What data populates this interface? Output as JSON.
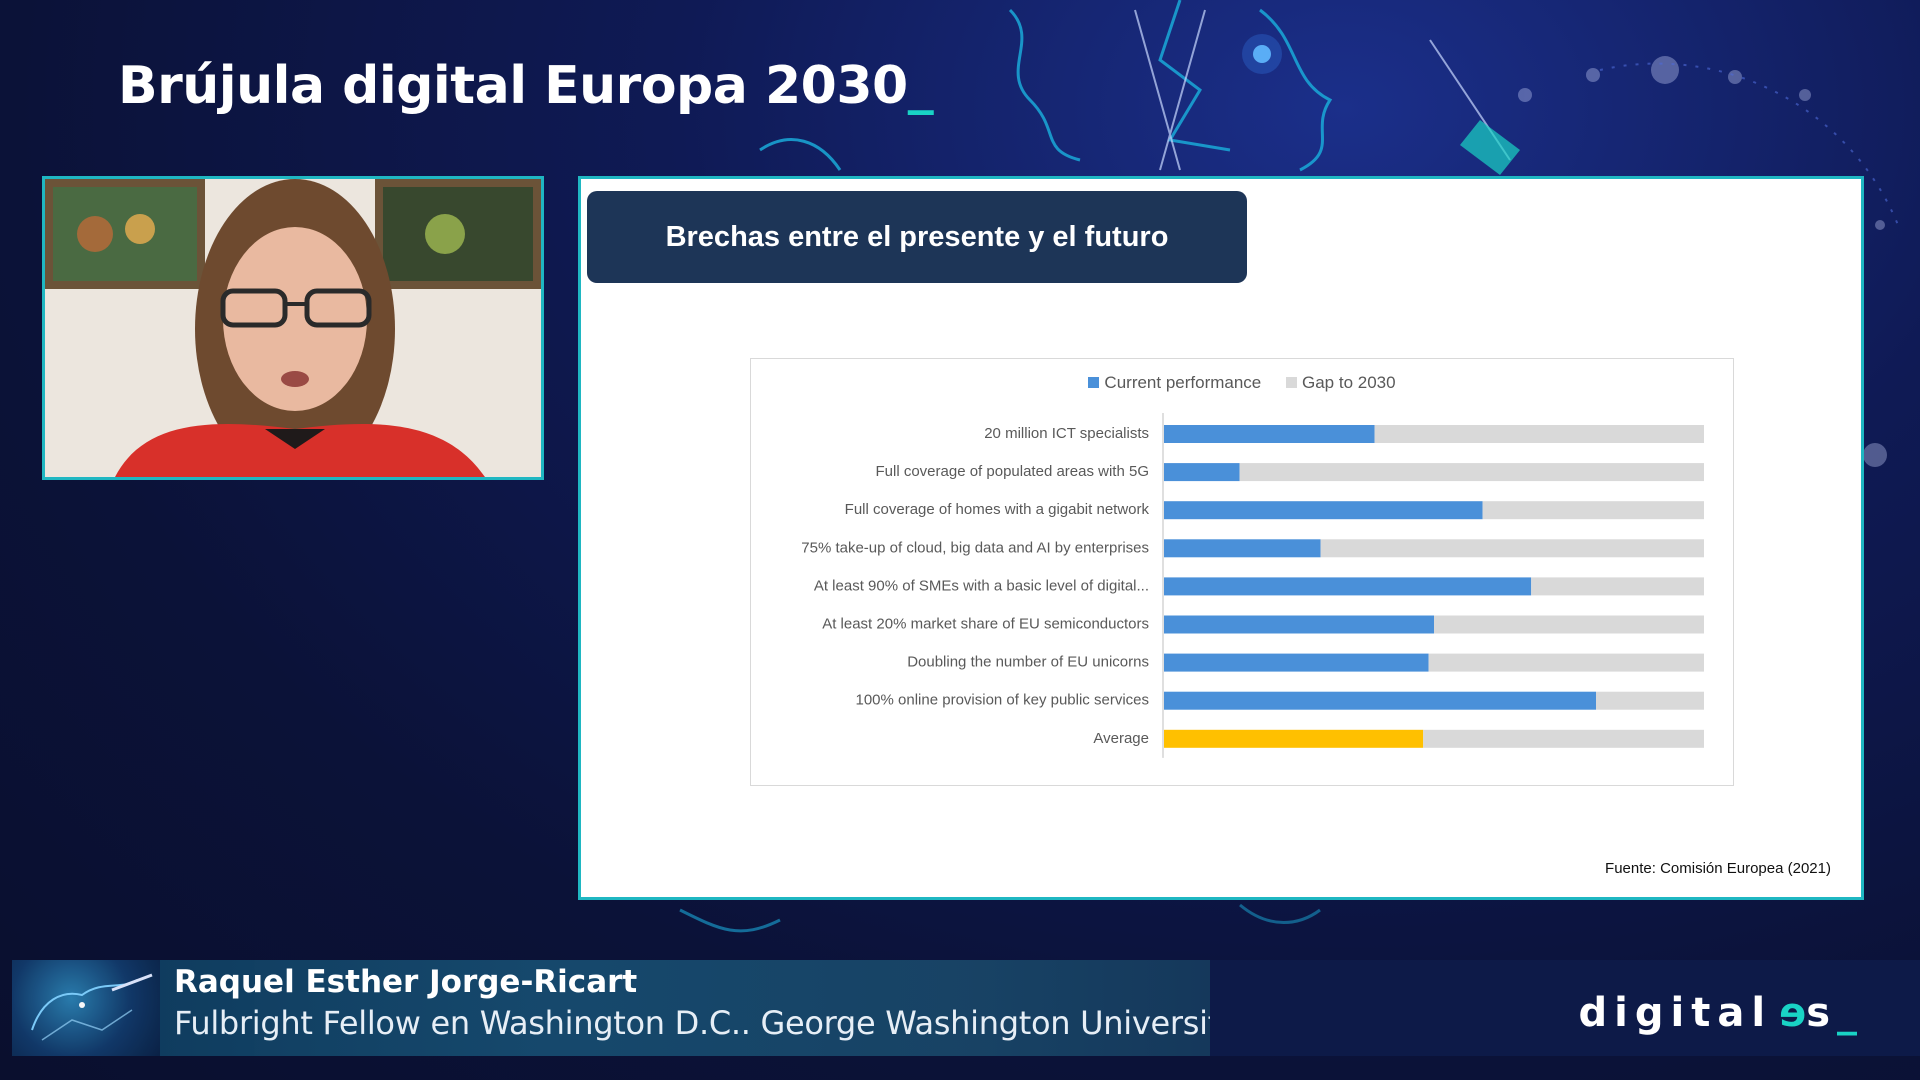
{
  "header": {
    "title": "Brújula digital Europa 2030",
    "cursor": "_"
  },
  "slide": {
    "header_title": "Brechas entre el presente y el futuro",
    "source": "Fuente: Comisión Europea (2021)"
  },
  "chart_data": {
    "type": "bar",
    "orientation": "horizontal",
    "stacked": true,
    "categories": [
      "20 million ICT specialists",
      "Full coverage of populated areas with 5G",
      "Full coverage of homes with a gigabit network",
      "75% take-up of cloud, big data and AI by enterprises",
      "At least 90% of SMEs with a basic level of digital...",
      "At least 20% market share of EU semiconductors",
      "Doubling the number of EU unicorns",
      "100% online provision of key public services",
      "Average"
    ],
    "series": [
      {
        "name": "Current performance",
        "values": [
          39,
          14,
          59,
          29,
          68,
          50,
          49,
          80,
          48
        ]
      },
      {
        "name": "Gap to 2030",
        "values": [
          61,
          86,
          41,
          71,
          32,
          50,
          51,
          20,
          52
        ]
      }
    ],
    "xlim": [
      0,
      100
    ],
    "legend_position": "top",
    "grid": false,
    "colors": {
      "current": "#4a90d9",
      "gap": "#d9d9d9",
      "average_highlight": "#ffc000"
    }
  },
  "lower_third": {
    "name": "Raquel Esther Jorge-Ricart",
    "role": "Fulbright Fellow en Washington D.C.. George Washington University."
  },
  "brand": {
    "prefix": "digital",
    "e": "e",
    "s": "s",
    "cursor": "_"
  },
  "colors": {
    "accent": "#19d3c5",
    "frame": "#1fb7c2",
    "slide_header_bg": "#1d3557"
  }
}
